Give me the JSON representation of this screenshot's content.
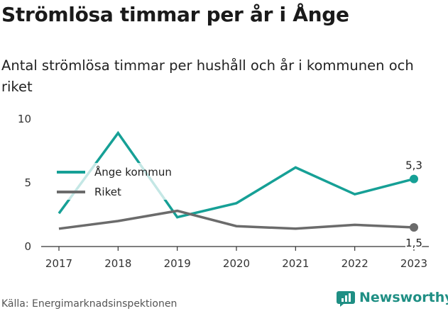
{
  "header": {
    "title": "Strömlösa timmar per år i Ånge",
    "subtitle": "Antal strömlösa timmar per hushåll och år i kommunen och riket"
  },
  "footer": {
    "source": "Källa: Energimarknadsinspektionen",
    "brand": "Newsworthy"
  },
  "colors": {
    "ange": "#16a096",
    "riket": "#6b6b6b",
    "brand": "#1f8f84"
  },
  "chart_data": {
    "type": "line",
    "x": [
      "2017",
      "2018",
      "2019",
      "2020",
      "2021",
      "2022",
      "2023"
    ],
    "ylim": [
      0,
      10
    ],
    "yticks": [
      "0",
      "5",
      "10"
    ],
    "grid": false,
    "legend": "center-left",
    "series": [
      {
        "name": "Ånge kommun",
        "values": [
          2.6,
          8.9,
          2.3,
          3.4,
          6.2,
          4.1,
          5.3
        ],
        "end_label": "5,3"
      },
      {
        "name": "Riket",
        "values": [
          1.4,
          2.0,
          2.8,
          1.6,
          1.4,
          1.7,
          1.5
        ],
        "end_label": "1,5"
      }
    ]
  }
}
